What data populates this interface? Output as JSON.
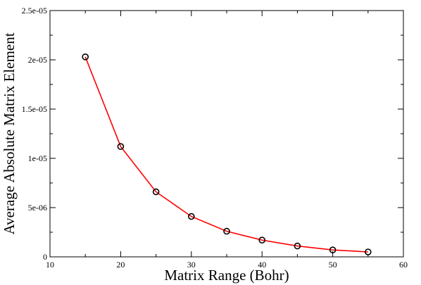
{
  "chart_data": {
    "type": "line",
    "title": "",
    "xlabel": "Matrix Range (Bohr)",
    "ylabel": "Average Absolute Matrix Element",
    "xlim": [
      10,
      60
    ],
    "ylim": [
      0,
      2.5e-05
    ],
    "x_ticks": [
      10,
      20,
      30,
      40,
      50,
      60
    ],
    "x_tick_labels": [
      "10",
      "20",
      "30",
      "40",
      "50",
      "60"
    ],
    "y_ticks": [
      0,
      5e-06,
      1e-05,
      1.5e-05,
      2e-05,
      2.5e-05
    ],
    "y_tick_labels": [
      "0",
      "5e-06",
      "1e-05",
      "1.5e-05",
      "2e-05",
      "2.5e-05"
    ],
    "grid": false,
    "series": [
      {
        "x": [
          15,
          20,
          25,
          30,
          35,
          40,
          45,
          50,
          55
        ],
        "y": [
          2.03e-05,
          1.12e-05,
          6.6e-06,
          4.1e-06,
          2.6e-06,
          1.7e-06,
          1.1e-06,
          7e-07,
          5e-07
        ],
        "line_color": "#ff0000",
        "marker": "circle",
        "marker_color": "#000000"
      }
    ]
  }
}
